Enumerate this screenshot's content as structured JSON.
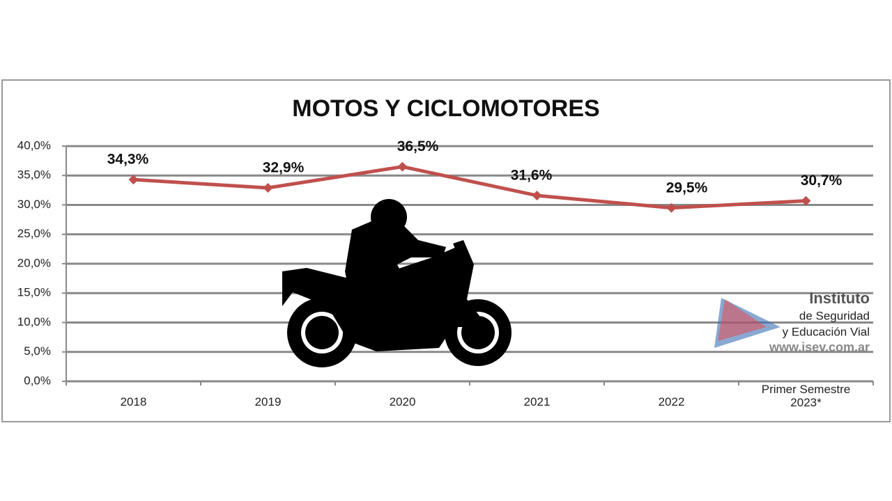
{
  "chart_data": {
    "type": "line",
    "title": "MOTOS Y CICLOMOTORES",
    "categories": [
      "2018",
      "2019",
      "2020",
      "2021",
      "2022",
      "Primer Semestre 2023*"
    ],
    "series": [
      {
        "name": "Motos y ciclomotores",
        "color": "#c0504d",
        "values": [
          34.3,
          32.9,
          36.5,
          31.6,
          29.5,
          30.7
        ],
        "value_labels": [
          "34,3%",
          "32,9%",
          "36,5%",
          "31,6%",
          "29,5%",
          "30,7%"
        ]
      }
    ],
    "ylim": [
      0,
      40
    ],
    "yticks": [
      {
        "value": 0,
        "label": "0,0%"
      },
      {
        "value": 5,
        "label": "5,0%"
      },
      {
        "value": 10,
        "label": "10,0%"
      },
      {
        "value": 15,
        "label": "15,0%"
      },
      {
        "value": 20,
        "label": "20,0%"
      },
      {
        "value": 25,
        "label": "25,0%"
      },
      {
        "value": 30,
        "label": "30,0%"
      },
      {
        "value": 35,
        "label": "35,0%"
      },
      {
        "value": 40,
        "label": "40,0%"
      }
    ],
    "grid": true
  },
  "logo": [
    "Instituto",
    "de Seguridad",
    "y Educación Vial",
    "www.isev.com.ar"
  ]
}
